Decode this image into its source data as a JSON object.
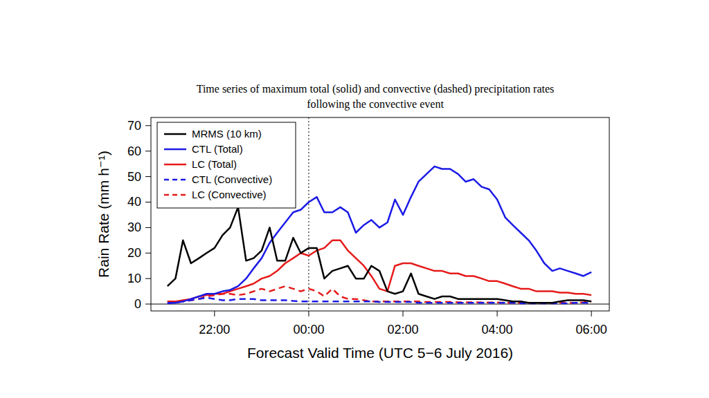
{
  "chart_data": {
    "type": "line",
    "title": "Time series of maximum total (solid) and convective (dashed) precipitation rates\nfollowing the convective event",
    "x_label": "Forecast Valid Time (UTC 5−6 July 2016)",
    "y_label": "Rain Rate (mm h⁻¹)",
    "legend": "top-left",
    "x": [
      21,
      21.17,
      21.33,
      21.5,
      21.67,
      21.83,
      22,
      22.17,
      22.33,
      22.5,
      22.67,
      22.83,
      23,
      23.17,
      23.33,
      23.5,
      23.67,
      23.83,
      24,
      24.17,
      24.33,
      24.5,
      24.67,
      24.83,
      25,
      25.17,
      25.33,
      25.5,
      25.67,
      25.83,
      26,
      26.17,
      26.33,
      26.5,
      26.67,
      26.83,
      27,
      27.17,
      27.33,
      27.5,
      27.67,
      27.83,
      28,
      28.17,
      28.33,
      28.5,
      28.67,
      28.83,
      29,
      29.17,
      29.33,
      29.5,
      29.67,
      29.83,
      30
    ],
    "xlim": [
      20.65,
      30.38
    ],
    "xticks": [
      {
        "value": 22,
        "label": "22:00"
      },
      {
        "value": 24,
        "label": "00:00"
      },
      {
        "value": 26,
        "label": "02:00"
      },
      {
        "value": 28,
        "label": "04:00"
      },
      {
        "value": 30,
        "label": "06:00"
      }
    ],
    "ylim": [
      -2.7,
      73.2
    ],
    "yticks": [
      0,
      10,
      20,
      30,
      40,
      50,
      60,
      70
    ],
    "vlines": [
      24
    ],
    "hlines": [
      0
    ],
    "grid": false,
    "series": [
      {
        "name": "MRMS (10 km)",
        "color": "#000000",
        "line_style": "solid",
        "values": [
          7,
          10,
          25,
          16,
          18,
          20,
          22,
          27,
          30,
          38,
          17,
          18,
          21,
          30,
          17,
          17,
          26,
          20,
          22,
          22,
          10,
          13,
          14,
          15,
          10,
          10,
          15,
          13,
          5,
          4,
          5,
          12,
          4,
          3,
          2,
          3,
          3,
          2,
          2,
          2,
          2,
          2,
          2,
          1.5,
          1,
          1,
          0.5,
          0.5,
          0.5,
          0.5,
          1,
          1.5,
          1.5,
          1.5,
          1
        ]
      },
      {
        "name": "CTL (Total)",
        "color": "#1a1ae6",
        "line_style": "solid",
        "values": [
          0.5,
          0.5,
          1,
          2,
          3,
          4,
          4,
          5,
          5.5,
          7,
          10,
          14,
          18,
          24,
          28,
          32,
          36,
          37,
          40,
          42,
          36,
          36,
          38,
          36,
          28,
          31,
          33,
          30,
          32,
          41,
          35,
          42,
          48,
          51,
          54,
          53,
          53,
          51,
          48,
          49,
          46,
          45,
          41,
          34,
          31,
          28,
          25,
          21,
          16,
          13,
          14,
          13,
          12,
          11,
          12.5
        ]
      },
      {
        "name": "LC (Total)",
        "color": "#e61a1a",
        "line_style": "solid",
        "values": [
          1,
          1,
          1.5,
          2,
          3,
          3.5,
          4,
          4,
          5,
          6,
          7,
          8,
          10,
          11,
          13,
          16,
          18,
          20,
          19,
          21,
          22,
          25,
          25,
          21,
          18,
          15,
          11,
          6,
          5,
          15,
          16,
          16,
          15,
          14,
          13,
          13,
          12,
          12,
          11,
          11,
          10,
          9,
          9,
          8,
          7,
          6,
          6,
          5,
          5,
          5,
          4.5,
          4.5,
          4,
          4,
          3.5
        ]
      },
      {
        "name": "CTL (Convective)",
        "color": "#1a1ae6",
        "line_style": "dashed",
        "values": [
          0.3,
          0.5,
          1,
          1.5,
          2,
          2.5,
          2,
          1.5,
          1.5,
          2,
          2,
          2,
          1.5,
          1.5,
          1.5,
          1.5,
          1.2,
          1,
          1,
          1,
          1,
          1,
          1,
          1,
          1,
          1,
          1,
          0.8,
          0.8,
          0.8,
          0.8,
          0.8,
          0.5,
          0.5,
          0.5,
          0.5,
          0.5,
          0.5,
          0.5,
          0.5,
          0.5,
          0.5,
          0.5,
          0.5,
          0.5,
          0.3,
          0.3,
          0.3,
          0.3,
          0.3,
          0.3,
          0.3,
          0.5,
          0.5,
          0.5
        ]
      },
      {
        "name": "LC (Convective)",
        "color": "#e61a1a",
        "line_style": "dashed",
        "values": [
          1,
          1,
          1,
          1.5,
          2,
          3,
          3.5,
          4,
          4,
          3.5,
          4,
          5,
          6,
          5,
          6,
          7,
          6,
          5,
          6,
          5,
          3,
          6,
          3,
          2,
          2,
          1.5,
          1,
          1,
          1,
          1,
          1,
          1,
          1,
          0.8,
          0.8,
          0.8,
          0.8,
          0.7,
          0.7,
          0.7,
          0.6,
          0.6,
          0.6,
          0.5,
          0.5,
          0.5,
          0.5,
          0.5,
          0.5,
          0.5,
          0.5,
          0.5,
          0.5,
          0.7,
          1
        ]
      }
    ]
  }
}
